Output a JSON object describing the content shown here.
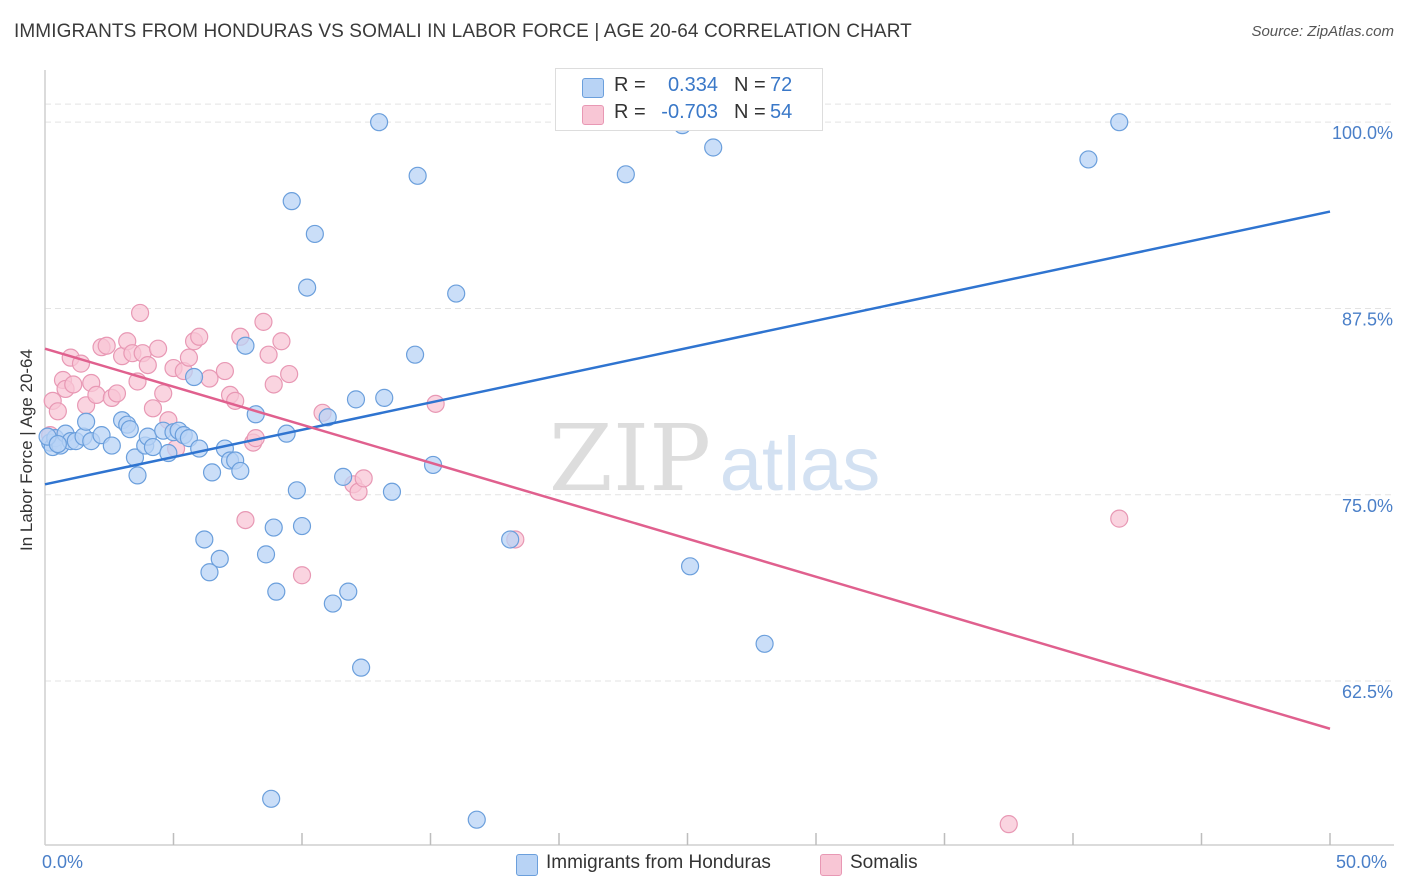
{
  "header": {
    "title": "IMMIGRANTS FROM HONDURAS VS SOMALI IN LABOR FORCE | AGE 20-64 CORRELATION CHART",
    "source": "Source: ZipAtlas.com"
  },
  "watermark": {
    "zip": "ZIP",
    "atlas": "atlas"
  },
  "legend_stats": {
    "r_label": "R =",
    "n_label": "N =",
    "rows": [
      {
        "r": "0.334",
        "n": "72"
      },
      {
        "r": "-0.703",
        "n": "54"
      }
    ]
  },
  "colors": {
    "blue_fill": "#b8d3f5",
    "blue_stroke": "#6b9fdc",
    "blue_line": "#2f74d0",
    "blue_text": "#3a78c8",
    "pink_fill": "#f8c6d5",
    "pink_stroke": "#e898b4",
    "pink_line": "#e0608e"
  },
  "chart_data": {
    "type": "scatter",
    "title": "IMMIGRANTS FROM HONDURAS VS SOMALI IN LABOR FORCE | AGE 20-64 CORRELATION CHART",
    "xlabel": "",
    "ylabel": "In Labor Force | Age 20-64",
    "xlim": [
      0,
      50
    ],
    "ylim": [
      51.5,
      103.5
    ],
    "x_tick_labels": [
      "0.0%",
      "50.0%"
    ],
    "y_ticks": [
      {
        "value": 62.5,
        "label": "62.5%"
      },
      {
        "value": 75.0,
        "label": "75.0%"
      },
      {
        "value": 87.5,
        "label": "87.5%"
      },
      {
        "value": 100.0,
        "label": "100.0%"
      }
    ],
    "grid": true,
    "series": [
      {
        "name": "Immigrants from Honduras",
        "color": "#6b9fdc",
        "trend": {
          "x": [
            0,
            50
          ],
          "y": [
            75.7,
            94.0
          ]
        },
        "points": [
          [
            0.2,
            78.5
          ],
          [
            0.3,
            78.2
          ],
          [
            0.4,
            78.8
          ],
          [
            0.6,
            78.3
          ],
          [
            0.8,
            79.1
          ],
          [
            1.0,
            78.6
          ],
          [
            1.2,
            78.6
          ],
          [
            1.5,
            78.9
          ],
          [
            1.6,
            79.9
          ],
          [
            1.8,
            78.6
          ],
          [
            2.2,
            79.0
          ],
          [
            2.6,
            78.3
          ],
          [
            3.0,
            80.0
          ],
          [
            3.2,
            79.7
          ],
          [
            3.3,
            79.4
          ],
          [
            3.5,
            77.5
          ],
          [
            3.6,
            76.3
          ],
          [
            3.9,
            78.3
          ],
          [
            4.0,
            78.9
          ],
          [
            4.2,
            78.2
          ],
          [
            4.6,
            79.3
          ],
          [
            4.8,
            77.8
          ],
          [
            5.0,
            79.2
          ],
          [
            5.2,
            79.3
          ],
          [
            5.4,
            79.0
          ],
          [
            5.6,
            78.8
          ],
          [
            5.8,
            82.9
          ],
          [
            6.0,
            78.1
          ],
          [
            6.2,
            72.0
          ],
          [
            6.4,
            69.8
          ],
          [
            6.5,
            76.5
          ],
          [
            6.8,
            70.7
          ],
          [
            7.0,
            78.1
          ],
          [
            7.2,
            77.3
          ],
          [
            7.4,
            77.3
          ],
          [
            7.6,
            76.6
          ],
          [
            7.8,
            85.0
          ],
          [
            8.2,
            80.4
          ],
          [
            8.6,
            71.0
          ],
          [
            8.8,
            54.6
          ],
          [
            8.9,
            72.8
          ],
          [
            9.0,
            68.5
          ],
          [
            9.4,
            79.1
          ],
          [
            9.6,
            94.7
          ],
          [
            9.8,
            75.3
          ],
          [
            10.0,
            72.9
          ],
          [
            10.2,
            88.9
          ],
          [
            10.5,
            92.5
          ],
          [
            11.0,
            80.2
          ],
          [
            11.2,
            67.7
          ],
          [
            11.6,
            76.2
          ],
          [
            11.8,
            68.5
          ],
          [
            12.1,
            81.4
          ],
          [
            12.3,
            63.4
          ],
          [
            13.0,
            100.0
          ],
          [
            13.2,
            81.5
          ],
          [
            13.5,
            75.2
          ],
          [
            14.4,
            84.4
          ],
          [
            14.5,
            96.4
          ],
          [
            15.1,
            77.0
          ],
          [
            16.0,
            88.5
          ],
          [
            16.8,
            53.2
          ],
          [
            18.1,
            72.0
          ],
          [
            22.6,
            96.5
          ],
          [
            24.8,
            99.8
          ],
          [
            25.1,
            70.2
          ],
          [
            26.0,
            98.3
          ],
          [
            28.0,
            65.0
          ],
          [
            40.6,
            97.5
          ],
          [
            41.8,
            100.0
          ],
          [
            0.1,
            78.9
          ],
          [
            0.5,
            78.4
          ]
        ]
      },
      {
        "name": "Somalis",
        "color": "#e898b4",
        "trend": {
          "x": [
            0,
            50
          ],
          "y": [
            84.8,
            59.3
          ]
        },
        "points": [
          [
            0.2,
            79.0
          ],
          [
            0.3,
            81.3
          ],
          [
            0.5,
            80.6
          ],
          [
            0.7,
            82.7
          ],
          [
            0.8,
            82.1
          ],
          [
            1.0,
            84.2
          ],
          [
            1.1,
            82.4
          ],
          [
            1.4,
            83.8
          ],
          [
            1.6,
            81.0
          ],
          [
            1.8,
            82.5
          ],
          [
            2.0,
            81.7
          ],
          [
            2.2,
            84.9
          ],
          [
            2.4,
            85.0
          ],
          [
            2.6,
            81.5
          ],
          [
            2.8,
            81.8
          ],
          [
            3.0,
            84.3
          ],
          [
            3.2,
            85.3
          ],
          [
            3.4,
            84.5
          ],
          [
            3.6,
            82.6
          ],
          [
            3.7,
            87.2
          ],
          [
            3.8,
            84.5
          ],
          [
            4.0,
            83.7
          ],
          [
            4.2,
            80.8
          ],
          [
            4.4,
            84.8
          ],
          [
            4.6,
            81.8
          ],
          [
            4.8,
            80.0
          ],
          [
            5.0,
            83.5
          ],
          [
            5.1,
            78.1
          ],
          [
            5.4,
            83.3
          ],
          [
            5.6,
            84.2
          ],
          [
            5.8,
            85.3
          ],
          [
            6.0,
            85.6
          ],
          [
            6.4,
            82.8
          ],
          [
            7.0,
            83.3
          ],
          [
            7.2,
            81.7
          ],
          [
            7.4,
            81.3
          ],
          [
            7.6,
            85.6
          ],
          [
            7.8,
            73.3
          ],
          [
            8.1,
            78.5
          ],
          [
            8.2,
            78.8
          ],
          [
            8.5,
            86.6
          ],
          [
            8.7,
            84.4
          ],
          [
            8.9,
            82.4
          ],
          [
            9.2,
            85.3
          ],
          [
            9.5,
            83.1
          ],
          [
            10.0,
            69.6
          ],
          [
            10.8,
            80.5
          ],
          [
            12.0,
            75.7
          ],
          [
            12.2,
            75.2
          ],
          [
            12.4,
            76.1
          ],
          [
            15.2,
            81.1
          ],
          [
            18.3,
            72.0
          ],
          [
            37.5,
            52.9
          ],
          [
            41.8,
            73.4
          ]
        ]
      }
    ]
  },
  "legend_bottom": {
    "items": [
      {
        "label": "Immigrants from Honduras"
      },
      {
        "label": "Somalis"
      }
    ]
  }
}
